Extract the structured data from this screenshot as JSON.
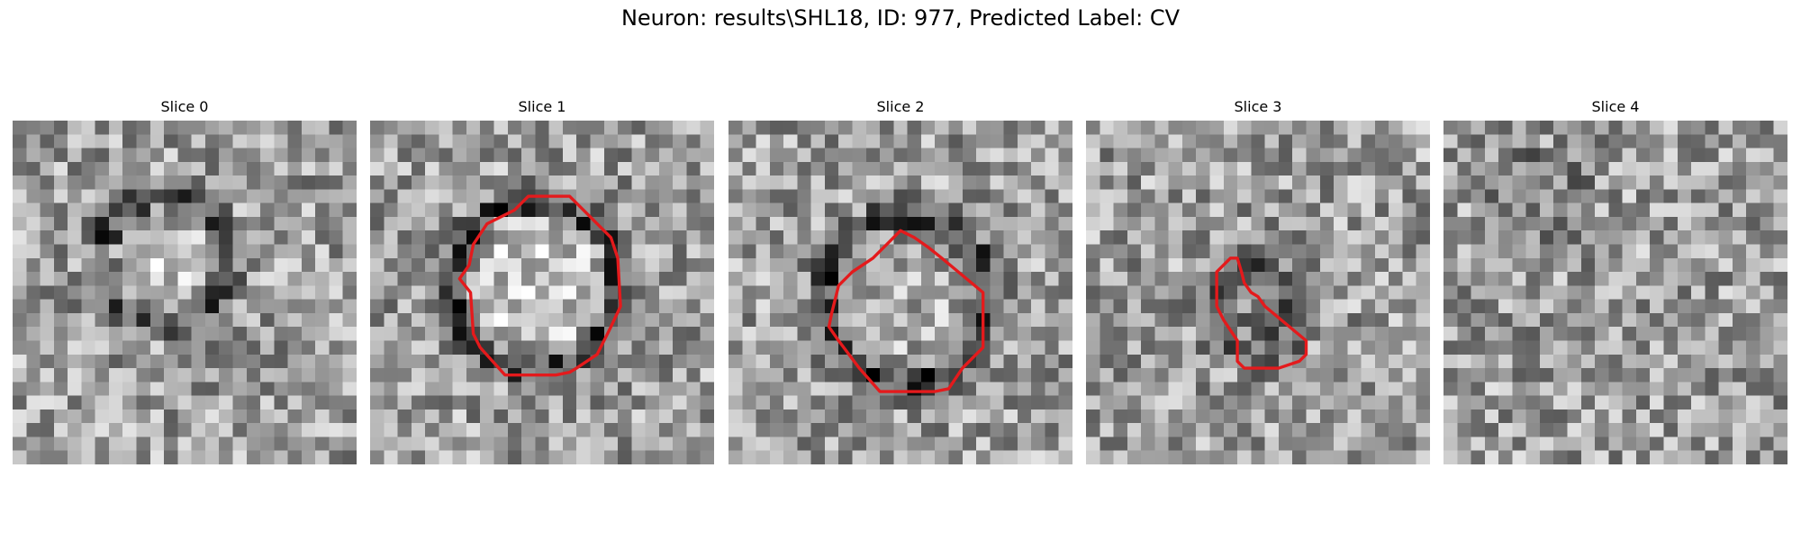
{
  "figure": {
    "title": "Neuron: results\\SHL18, ID: 977, Predicted Label: CV"
  },
  "image_grid_size": 25,
  "contour_color": "#e41a1c",
  "panels": [
    {
      "label": "Slice 0",
      "seed": 11,
      "blob": {
        "cx": 11,
        "cy": 10,
        "r": 4.5,
        "ring_dark": 0.34,
        "inner_bright": 0.12
      },
      "contour": []
    },
    {
      "label": "Slice 1",
      "seed": 23,
      "blob": {
        "cx": 12,
        "cy": 12,
        "r": 6,
        "ring_dark": 0.38,
        "inner_bright": 0.16
      },
      "contour": [
        [
          11.5,
          5.5
        ],
        [
          14.5,
          5.5
        ],
        [
          15.5,
          6.5
        ],
        [
          17.5,
          8.5
        ],
        [
          18.0,
          10.0
        ],
        [
          18.2,
          13.5
        ],
        [
          17.5,
          15.0
        ],
        [
          16.5,
          17.0
        ],
        [
          15.0,
          18.0
        ],
        [
          14.5,
          18.3
        ],
        [
          13.5,
          18.5
        ],
        [
          9.8,
          18.5
        ],
        [
          8.0,
          16.5
        ],
        [
          7.5,
          15.5
        ],
        [
          7.3,
          12.5
        ],
        [
          6.5,
          11.5
        ],
        [
          7.2,
          10.5
        ],
        [
          7.5,
          9.0
        ],
        [
          8.5,
          7.5
        ],
        [
          9.5,
          7.0
        ],
        [
          10.5,
          6.5
        ]
      ]
    },
    {
      "label": "Slice 2",
      "seed": 37,
      "blob": {
        "cx": 13,
        "cy": 13,
        "r": 6,
        "ring_dark": 0.4,
        "inner_bright": 0.05
      },
      "contour": [
        [
          12.5,
          8.0
        ],
        [
          13.5,
          8.5
        ],
        [
          14.5,
          9.2
        ],
        [
          15.5,
          10.0
        ],
        [
          18.5,
          12.5
        ],
        [
          18.5,
          16.5
        ],
        [
          17.0,
          18.0
        ],
        [
          16.0,
          19.5
        ],
        [
          15.0,
          19.7
        ],
        [
          11.0,
          19.7
        ],
        [
          9.5,
          18.0
        ],
        [
          8.0,
          16.0
        ],
        [
          7.3,
          15.0
        ],
        [
          7.5,
          14.0
        ],
        [
          8.0,
          12.0
        ],
        [
          9.0,
          11.0
        ],
        [
          10.5,
          10.0
        ],
        [
          11.5,
          9.0
        ]
      ]
    },
    {
      "label": "Slice 3",
      "seed": 51,
      "blob": {
        "cx": 12,
        "cy": 14,
        "r": 3.2,
        "ring_dark": 0.28,
        "inner_bright": -0.1
      },
      "contour": [
        [
          10.5,
          10.0
        ],
        [
          11.0,
          10.0
        ],
        [
          11.3,
          11.0
        ],
        [
          11.5,
          11.8
        ],
        [
          12.0,
          12.5
        ],
        [
          12.5,
          12.8
        ],
        [
          13.0,
          13.5
        ],
        [
          16.0,
          16.0
        ],
        [
          16.0,
          17.0
        ],
        [
          15.5,
          17.5
        ],
        [
          14.0,
          18.0
        ],
        [
          11.5,
          18.0
        ],
        [
          11.0,
          17.5
        ],
        [
          11.0,
          16.0
        ],
        [
          10.0,
          14.5
        ],
        [
          9.5,
          13.5
        ],
        [
          9.5,
          11.0
        ]
      ]
    },
    {
      "label": "Slice 4",
      "seed": 67,
      "blob": {
        "cx": 7,
        "cy": 6,
        "r": 5,
        "ring_dark": 0.0,
        "inner_bright": -0.14
      },
      "contour": []
    }
  ]
}
